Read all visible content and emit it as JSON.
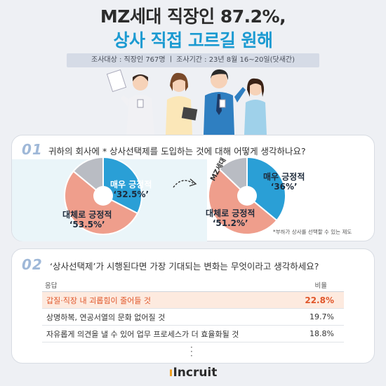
{
  "title": {
    "line1": "MZ세대 직장인 87.2%,",
    "line2": "상사 직접 고르길 원해"
  },
  "survey_info": "조사대상 : 직장인 767명 ㅣ 조사기간 : 23년 8월 16~20일(닷새간)",
  "colors": {
    "blue": "#2a9fd6",
    "salmon": "#ef9e8c",
    "gray": "#b9bcc3",
    "accent": "#e0562a"
  },
  "chart_data": [
    {
      "type": "pie",
      "question_number": "01",
      "title": "귀하의 회사에 * 상사선택제를 도입하는 것에 대해 어떻게 생각하나요?",
      "slices": [
        {
          "label": "매우 긍정적",
          "value": 32.5,
          "value_text": "‘32.5%’"
        },
        {
          "label": "대체로 긍정적",
          "value": 53.5,
          "value_text": "‘53.5%’"
        },
        {
          "label": "",
          "value": 14.0,
          "value_text": ""
        }
      ]
    },
    {
      "type": "pie",
      "series_label": "MZ세대",
      "slices": [
        {
          "label": "매우 긍정적",
          "value": 36.0,
          "value_text": "‘36%’"
        },
        {
          "label": "대체로 긍정적",
          "value": 51.2,
          "value_text": "‘51.2%’"
        },
        {
          "label": "",
          "value": 12.8,
          "value_text": ""
        }
      ]
    },
    {
      "type": "table",
      "question_number": "02",
      "title": "‘상사선택제’가 시행된다면 가장 기대되는 변화는 무엇이라고 생각하세요?",
      "columns": [
        "응답",
        "비율"
      ],
      "rows": [
        {
          "label": "갑질·직장 내 괴롭힘이 줄어들 것",
          "value": 22.8,
          "value_text": "22.8%"
        },
        {
          "label": "상명하복, 연공서열의 문화 없어질 것",
          "value": 19.7,
          "value_text": "19.7%"
        },
        {
          "label": "자유롭게 의견을 낼 수 있어 업무 프로세스가 더 효율화될 것",
          "value": 18.8,
          "value_text": "18.8%"
        }
      ]
    }
  ],
  "footnote": "*부하가 상사를 선택할 수 있는 제도",
  "logo": {
    "text": "Incruit",
    "dot": "ı"
  }
}
